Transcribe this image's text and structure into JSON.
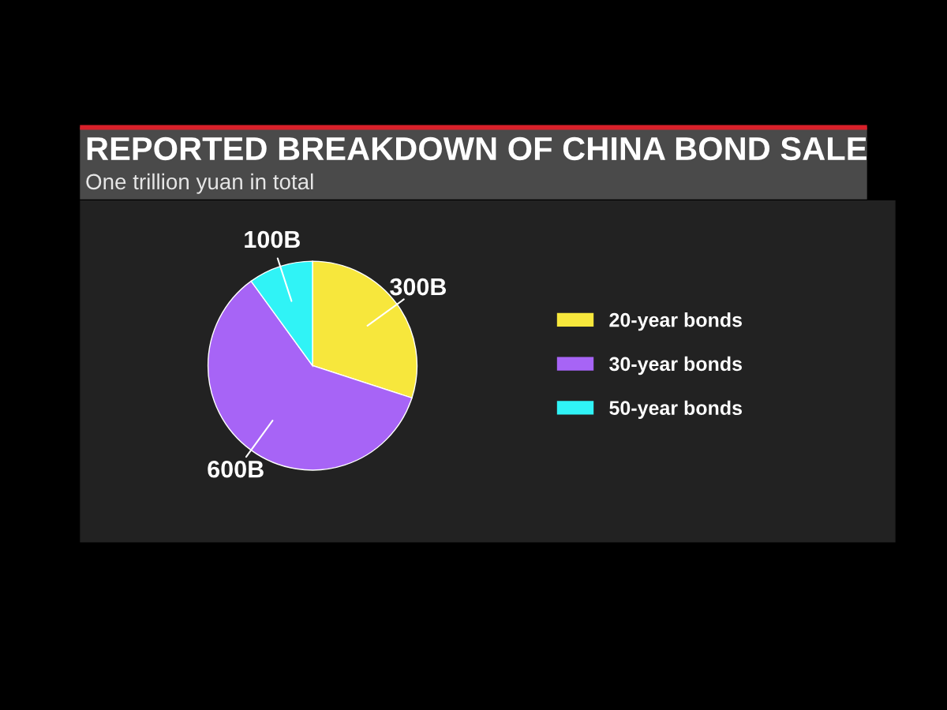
{
  "chart_data": {
    "type": "pie",
    "title": "REPORTED BREAKDOWN OF CHINA BOND SALE",
    "subtitle": "One trillion yuan in total",
    "categories": [
      "20-year bonds",
      "30-year bonds",
      "50-year bonds"
    ],
    "values": [
      300,
      600,
      100
    ],
    "value_labels": [
      "300B",
      "600B",
      "100B"
    ],
    "colors": [
      "#f7e73c",
      "#a764f6",
      "#30f3f6"
    ],
    "legend": "right"
  }
}
